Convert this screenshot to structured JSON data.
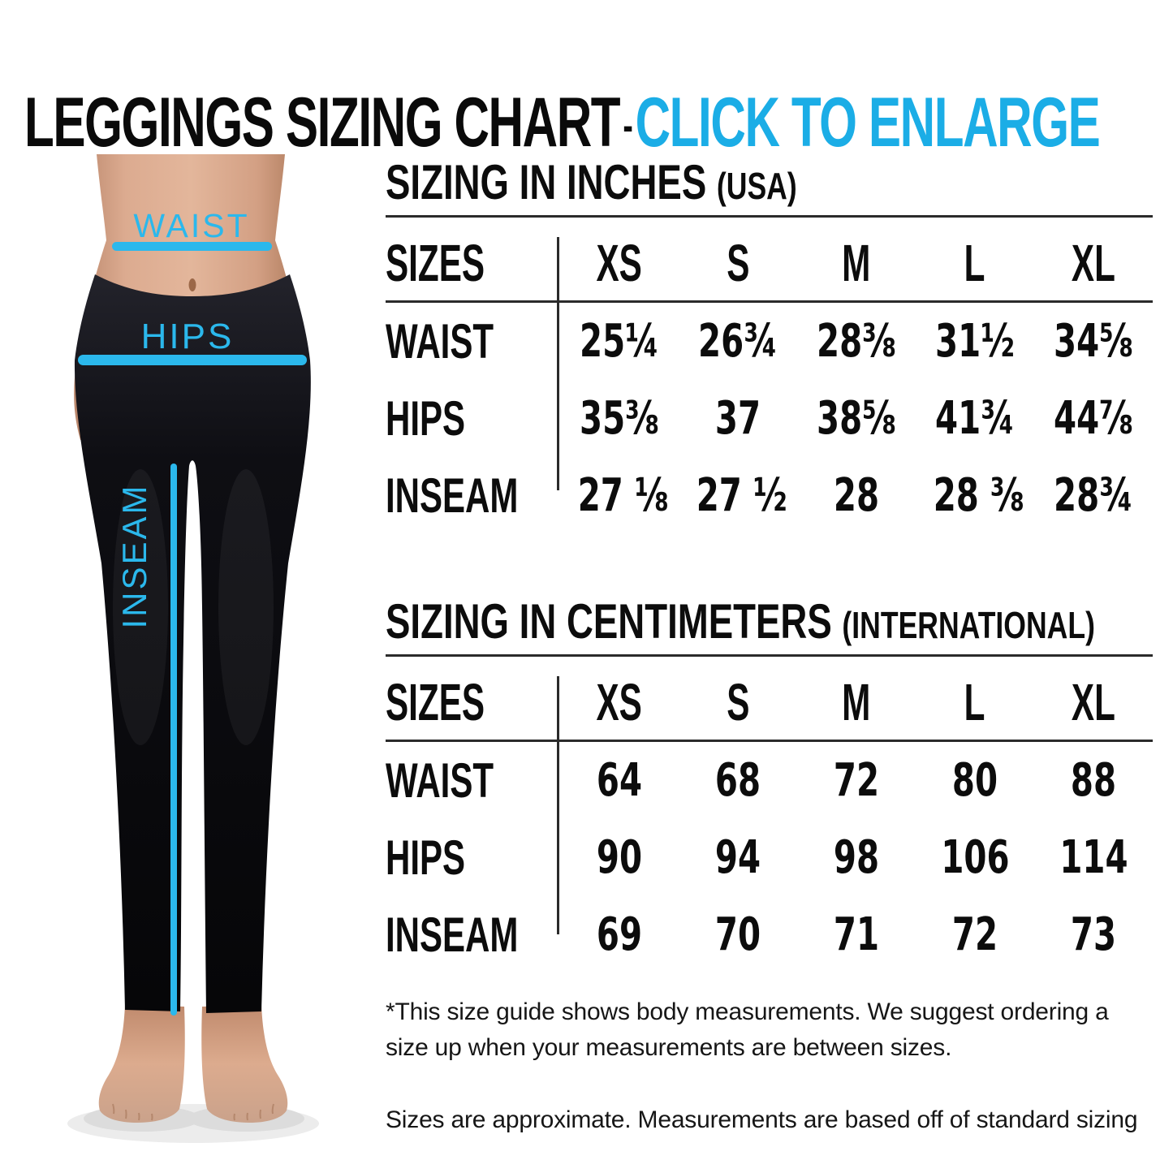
{
  "header": {
    "title": "LEGGINGS SIZING CHART",
    "separator": "-",
    "cta": "CLICK TO ENLARGE"
  },
  "figure": {
    "waist_label": "WAIST",
    "hips_label": "HIPS",
    "inseam_label": "INSEAM"
  },
  "chart_data": [
    {
      "type": "table",
      "title": "SIZING IN INCHES",
      "title_suffix": "(USA)",
      "columns": [
        "SIZES",
        "XS",
        "S",
        "M",
        "L",
        "XL"
      ],
      "rows": [
        {
          "label": "WAIST",
          "values": [
            "25¼",
            "26¾",
            "28⅜",
            "31½",
            "34⅝"
          ]
        },
        {
          "label": "HIPS",
          "values": [
            "35⅜",
            "37",
            "38⅝",
            "41¾",
            "44⅞"
          ]
        },
        {
          "label": "INSEAM",
          "values": [
            "27 ⅛",
            "27 ½",
            "28",
            "28 ⅜",
            "28¾"
          ]
        }
      ]
    },
    {
      "type": "table",
      "title": "SIZING IN CENTIMETERS",
      "title_suffix": "(INTERNATIONAL)",
      "columns": [
        "SIZES",
        "XS",
        "S",
        "M",
        "L",
        "XL"
      ],
      "rows": [
        {
          "label": "WAIST",
          "values": [
            "64",
            "68",
            "72",
            "80",
            "88"
          ]
        },
        {
          "label": "HIPS",
          "values": [
            "90",
            "94",
            "98",
            "106",
            "114"
          ]
        },
        {
          "label": "INSEAM",
          "values": [
            "69",
            "70",
            "71",
            "72",
            "73"
          ]
        }
      ]
    }
  ],
  "footnotes": [
    "*This size guide shows body measurements. We suggest ordering a size up when your measurements are between sizes.",
    "Sizes are approximate. Measurements are based off of standard sizing"
  ],
  "colors": {
    "accent": "#1badе6",
    "accent_fixed": "#1badE6",
    "title_accent": "#1badE6",
    "figure_accent": "#2bb8ec",
    "text": "#0c0c0c",
    "rule": "#2b2b2b",
    "leggings": "#0b0b0f",
    "skin": "#d3a088"
  }
}
